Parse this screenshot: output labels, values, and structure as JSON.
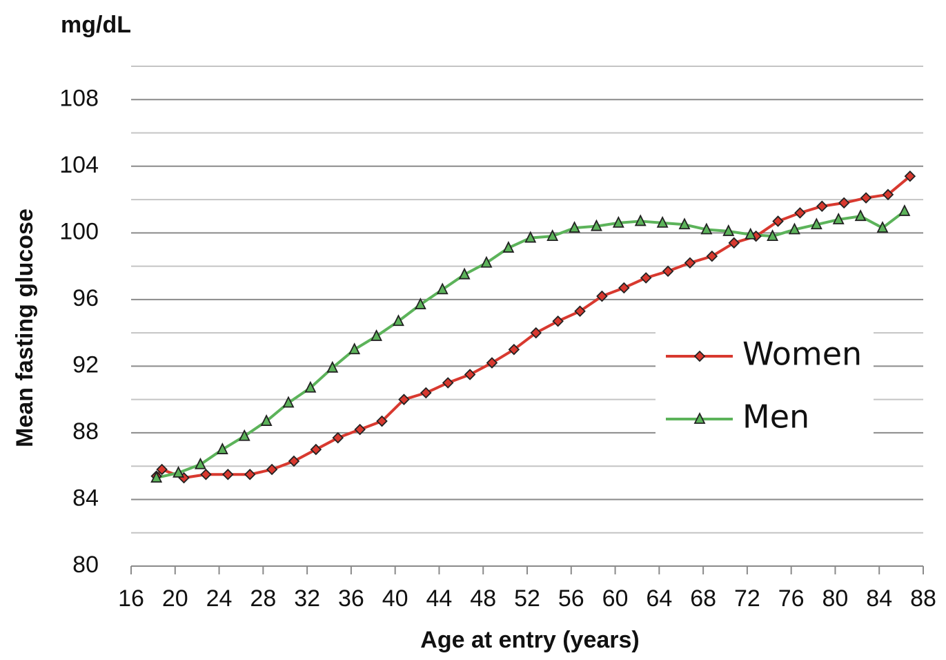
{
  "chart_data": {
    "type": "line",
    "y_unit": "mg/dL",
    "y_label": "Mean fasting glucose",
    "x_label": "Age at entry (years)",
    "xlim": [
      16,
      88
    ],
    "xticks": [
      16,
      20,
      24,
      28,
      32,
      36,
      40,
      44,
      48,
      52,
      56,
      60,
      64,
      68,
      72,
      76,
      80,
      84,
      88
    ],
    "ylim": [
      80,
      110
    ],
    "yticks": [
      80,
      84,
      88,
      92,
      96,
      100,
      104,
      108
    ],
    "yticks_minor": [
      82,
      86,
      90,
      94,
      98,
      102,
      106,
      110
    ],
    "grid": true,
    "legend": "right",
    "series": [
      {
        "name": "Women",
        "color": "#d8392f",
        "marker": "diamond",
        "x": [
          18.3,
          18.8,
          20.8,
          22.8,
          24.8,
          26.8,
          28.8,
          30.8,
          32.8,
          34.8,
          36.8,
          38.8,
          40.8,
          42.8,
          44.8,
          46.8,
          48.8,
          50.8,
          52.8,
          54.8,
          56.8,
          58.8,
          60.8,
          62.8,
          64.8,
          66.8,
          68.8,
          70.8,
          72.8,
          74.8,
          76.8,
          78.8,
          80.8,
          82.8,
          84.8,
          86.8
        ],
        "values": [
          85.4,
          85.8,
          85.3,
          85.5,
          85.5,
          85.5,
          85.8,
          86.3,
          87.0,
          87.7,
          88.2,
          88.7,
          90.0,
          90.4,
          91.0,
          91.5,
          92.2,
          93.0,
          94.0,
          94.7,
          95.3,
          96.2,
          96.7,
          97.3,
          97.7,
          98.2,
          98.6,
          99.4,
          99.8,
          100.7,
          101.2,
          101.6,
          101.8,
          102.1,
          102.3,
          103.4
        ]
      },
      {
        "name": "Men",
        "color": "#5cb35a",
        "marker": "triangle",
        "x": [
          18.3,
          20.3,
          22.3,
          24.3,
          26.3,
          28.3,
          30.3,
          32.3,
          34.3,
          36.3,
          38.3,
          40.3,
          42.3,
          44.3,
          46.3,
          48.3,
          50.3,
          52.3,
          54.3,
          56.3,
          58.3,
          60.3,
          62.3,
          64.3,
          66.3,
          68.3,
          70.3,
          72.3,
          74.3,
          76.3,
          78.3,
          80.3,
          82.3,
          84.3,
          86.3
        ],
        "values": [
          85.3,
          85.6,
          86.1,
          87.0,
          87.8,
          88.7,
          89.8,
          90.7,
          91.9,
          93.0,
          93.8,
          94.7,
          95.7,
          96.6,
          97.5,
          98.2,
          99.1,
          99.7,
          99.8,
          100.3,
          100.4,
          100.6,
          100.7,
          100.6,
          100.5,
          100.2,
          100.1,
          99.9,
          99.8,
          100.2,
          100.5,
          100.8,
          101.0,
          100.3,
          101.3
        ]
      }
    ]
  }
}
